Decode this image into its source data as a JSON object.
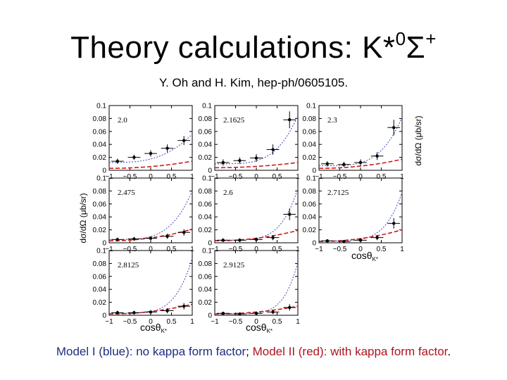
{
  "slide": {
    "title_main": "Theory calculations: K*",
    "title_sup": "0",
    "title_sigma": "Σ",
    "title_sup2": "+",
    "subtitle": "Y. Oh and H. Kim, hep-ph/0605105.",
    "footer": {
      "part1": "Model I (blue): no kappa form factor",
      "sep": "; ",
      "part2": "Model II (red): with kappa form factor",
      "end": "."
    }
  },
  "axes": {
    "ylabel_left": "dσ/dΩ  (μb/sr)",
    "ylabel_right": "dσ/dΩ  (μb/sr)",
    "xlabel": "cosθ",
    "xlabel_sub": "K*"
  },
  "colors": {
    "model1": "#3a4fb5",
    "model2": "#cc1b1b",
    "data": "#000000"
  },
  "chart_data": {
    "type": "scatter",
    "layout": "grid 3x3 (8 panels)",
    "xlim": [
      -1,
      1
    ],
    "ylim": [
      0,
      0.1
    ],
    "xticks": [
      -1,
      -0.5,
      0,
      0.5,
      1
    ],
    "xtick_labels": [
      "−1",
      "−0.5",
      "0",
      "0.5",
      "1"
    ],
    "yticks": [
      0,
      0.02,
      0.04,
      0.06,
      0.08,
      0.1
    ],
    "ytick_labels": [
      "0",
      "0.02",
      "0.04",
      "0.06",
      "0.08",
      "0.1"
    ],
    "series_names": [
      "Model I (blue)",
      "Model II (red)",
      "data"
    ],
    "panels": [
      {
        "label": "2.0",
        "points": [
          {
            "x": -0.8,
            "y": 0.014
          },
          {
            "x": -0.4,
            "y": 0.02
          },
          {
            "x": 0.0,
            "y": 0.026
          },
          {
            "x": 0.4,
            "y": 0.034
          },
          {
            "x": 0.8,
            "y": 0.046
          }
        ],
        "errors": [
          0.004,
          0.004,
          0.005,
          0.006,
          0.007
        ],
        "model1": {
          "a": 0.012,
          "b": 0.044,
          "p": 3
        },
        "model2": {
          "a": 0.003,
          "b": 0.011,
          "p": 2
        }
      },
      {
        "label": "2.1625",
        "points": [
          {
            "x": -0.8,
            "y": 0.012
          },
          {
            "x": -0.4,
            "y": 0.015
          },
          {
            "x": 0.0,
            "y": 0.019
          },
          {
            "x": 0.4,
            "y": 0.032
          },
          {
            "x": 0.8,
            "y": 0.078
          }
        ],
        "errors": [
          0.005,
          0.005,
          0.006,
          0.008,
          0.013
        ],
        "model1": {
          "a": 0.01,
          "b": 0.075,
          "p": 4
        },
        "model2": {
          "a": 0.004,
          "b": 0.008,
          "p": 2
        }
      },
      {
        "label": "2.3",
        "points": [
          {
            "x": -0.8,
            "y": 0.01
          },
          {
            "x": -0.4,
            "y": 0.009
          },
          {
            "x": 0.0,
            "y": 0.012
          },
          {
            "x": 0.4,
            "y": 0.022
          },
          {
            "x": 0.8,
            "y": 0.066
          }
        ],
        "errors": [
          0.004,
          0.004,
          0.005,
          0.006,
          0.012
        ],
        "model1": {
          "a": 0.007,
          "b": 0.075,
          "p": 4
        },
        "model2": {
          "a": 0.003,
          "b": 0.014,
          "p": 2
        }
      },
      {
        "label": "2.475",
        "points": [
          {
            "x": -0.8,
            "y": 0.005
          },
          {
            "x": -0.4,
            "y": 0.006
          },
          {
            "x": 0.0,
            "y": 0.007
          },
          {
            "x": 0.4,
            "y": 0.01
          },
          {
            "x": 0.8,
            "y": 0.016
          }
        ],
        "errors": [
          0.003,
          0.003,
          0.003,
          0.004,
          0.005
        ],
        "model1": {
          "a": 0.005,
          "b": 0.075,
          "p": 4
        },
        "model2": {
          "a": 0.003,
          "b": 0.018,
          "p": 2
        }
      },
      {
        "label": "2.6",
        "points": [
          {
            "x": -0.8,
            "y": 0.004
          },
          {
            "x": -0.4,
            "y": 0.004
          },
          {
            "x": 0.0,
            "y": 0.005
          },
          {
            "x": 0.4,
            "y": 0.008
          },
          {
            "x": 0.8,
            "y": 0.044
          }
        ],
        "errors": [
          0.003,
          0.003,
          0.003,
          0.004,
          0.009
        ],
        "model1": {
          "a": 0.004,
          "b": 0.08,
          "p": 5
        },
        "model2": {
          "a": 0.003,
          "b": 0.016,
          "p": 2
        }
      },
      {
        "label": "2.7125",
        "points": [
          {
            "x": -0.8,
            "y": 0.003
          },
          {
            "x": -0.4,
            "y": 0.002
          },
          {
            "x": 0.0,
            "y": 0.004
          },
          {
            "x": 0.4,
            "y": 0.008
          },
          {
            "x": 0.8,
            "y": 0.03
          }
        ],
        "errors": [
          0.002,
          0.002,
          0.003,
          0.004,
          0.008
        ],
        "model1": {
          "a": 0.003,
          "b": 0.075,
          "p": 5
        },
        "model2": {
          "a": 0.002,
          "b": 0.018,
          "p": 2
        }
      },
      {
        "label": "2.8125",
        "points": [
          {
            "x": -0.8,
            "y": 0.004
          },
          {
            "x": -0.4,
            "y": 0.004
          },
          {
            "x": 0.0,
            "y": 0.005
          },
          {
            "x": 0.4,
            "y": 0.007
          },
          {
            "x": 0.8,
            "y": 0.014
          }
        ],
        "errors": [
          0.003,
          0.003,
          0.003,
          0.004,
          0.005
        ],
        "model1": {
          "a": 0.003,
          "b": 0.085,
          "p": 5
        },
        "model2": {
          "a": 0.002,
          "b": 0.015,
          "p": 2
        }
      },
      {
        "label": "2.9125",
        "points": [
          {
            "x": -0.8,
            "y": 0.003
          },
          {
            "x": -0.4,
            "y": 0.002
          },
          {
            "x": 0.0,
            "y": 0.003
          },
          {
            "x": 0.4,
            "y": 0.005
          },
          {
            "x": 0.8,
            "y": 0.012
          }
        ],
        "errors": [
          0.002,
          0.002,
          0.002,
          0.003,
          0.005
        ],
        "model1": {
          "a": 0.002,
          "b": 0.08,
          "p": 6
        },
        "model2": {
          "a": 0.002,
          "b": 0.012,
          "p": 2
        }
      }
    ]
  }
}
